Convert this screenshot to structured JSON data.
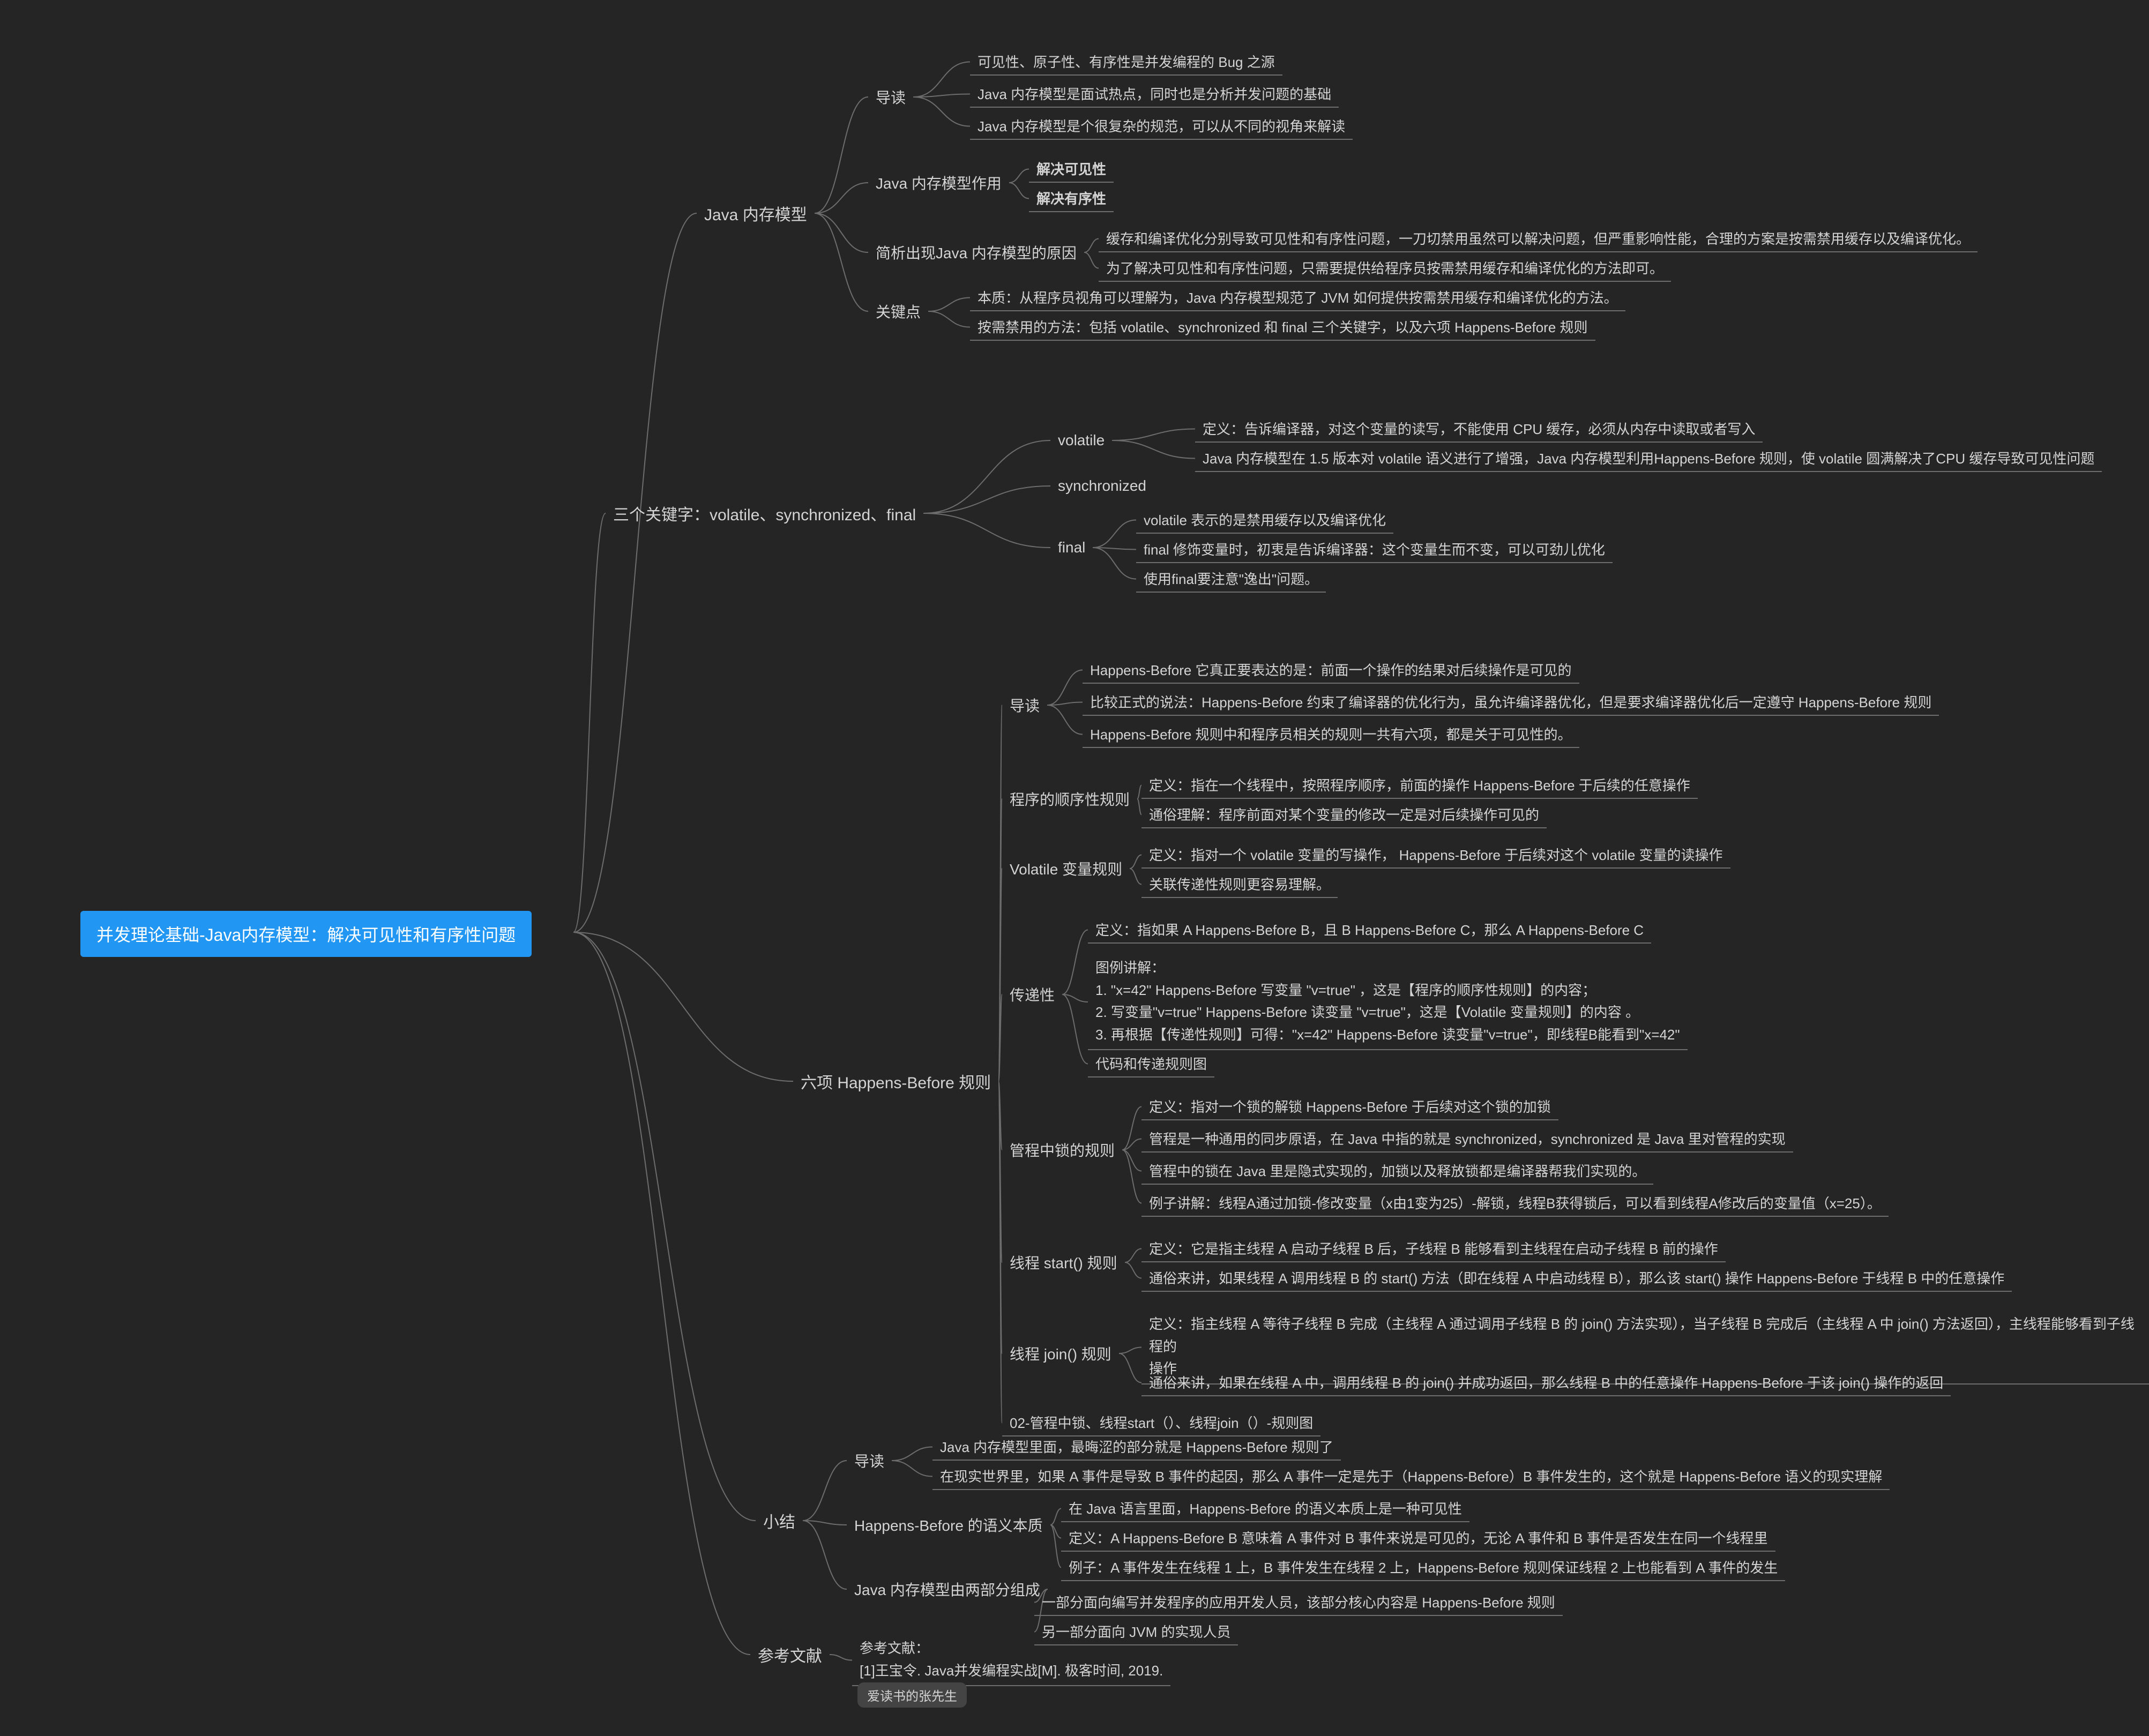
{
  "colors": {
    "bg": "#252526",
    "text": "#d4d4d4",
    "rootBg": "#2196f3",
    "rootText": "#ffffff",
    "connector": "#6d6d6d",
    "badgeBg": "#444444"
  },
  "typography": {
    "rootFont": 32,
    "branchFont": 30,
    "subFont": 28,
    "leafFont": 26
  },
  "root": {
    "label": "并发理论基础-Java内存模型：解决可见性和有序性问题"
  },
  "branches": [
    {
      "id": "b1",
      "label": "Java 内存模型"
    },
    {
      "id": "b2",
      "label": "三个关键字：volatile、synchronized、final"
    },
    {
      "id": "b3",
      "label": "六项 Happens-Before 规则"
    },
    {
      "id": "b4",
      "label": "小结"
    },
    {
      "id": "b5",
      "label": "参考文献"
    }
  ],
  "b1": {
    "sub": [
      {
        "id": "b1s1",
        "label": "导读"
      },
      {
        "id": "b1s2",
        "label": "Java 内存模型作用"
      },
      {
        "id": "b1s3",
        "label": "简析出现Java 内存模型的原因"
      },
      {
        "id": "b1s4",
        "label": "关键点"
      }
    ],
    "b1s1": [
      "可见性、原子性、有序性是并发编程的 Bug 之源",
      "Java 内存模型是面试热点，同时也是分析并发问题的基础",
      "Java 内存模型是个很复杂的规范，可以从不同的视角来解读"
    ],
    "b1s2": [
      "解决可见性",
      "解决有序性"
    ],
    "b1s3": [
      "缓存和编译优化分别导致可见性和有序性问题，一刀切禁用虽然可以解决问题，但严重影响性能，合理的方案是按需禁用缓存以及编译优化。",
      "为了解决可见性和有序性问题，只需要提供给程序员按需禁用缓存和编译优化的方法即可。"
    ],
    "b1s4": [
      "本质：从程序员视角可以理解为，Java 内存模型规范了 JVM 如何提供按需禁用缓存和编译优化的方法。",
      "按需禁用的方法：包括 volatile、synchronized 和 final 三个关键字，以及六项 Happens-Before 规则"
    ]
  },
  "b2": {
    "sub": [
      {
        "id": "b2s1",
        "label": "volatile"
      },
      {
        "id": "b2s2",
        "label": "synchronized"
      },
      {
        "id": "b2s3",
        "label": "final"
      }
    ],
    "b2s1": [
      "定义：告诉编译器，对这个变量的读写，不能使用 CPU 缓存，必须从内存中读取或者写入",
      "Java 内存模型在 1.5 版本对 volatile 语义进行了增强，Java 内存模型利用Happens-Before 规则，使 volatile 圆满解决了CPU 缓存导致可见性问题"
    ],
    "b2s3": [
      "volatile 表示的是禁用缓存以及编译优化",
      "final 修饰变量时，初衷是告诉编译器：这个变量生而不变，可以可劲儿优化",
      "使用final要注意\"逸出\"问题。"
    ]
  },
  "b3": {
    "sub": [
      {
        "id": "b3s1",
        "label": "导读"
      },
      {
        "id": "b3s2",
        "label": "程序的顺序性规则"
      },
      {
        "id": "b3s3",
        "label": "Volatile 变量规则"
      },
      {
        "id": "b3s4",
        "label": "传递性"
      },
      {
        "id": "b3s5",
        "label": "管程中锁的规则"
      },
      {
        "id": "b3s6",
        "label": "线程 start() 规则"
      },
      {
        "id": "b3s7",
        "label": "线程 join() 规则"
      },
      {
        "id": "b3s8",
        "label": "02-管程中锁、线程start（）、线程join（）-规则图"
      }
    ],
    "b3s1": [
      "Happens-Before 它真正要表达的是：前面一个操作的结果对后续操作是可见的",
      "比较正式的说法：Happens-Before 约束了编译器的优化行为，虽允许编译器优化，但是要求编译器优化后一定遵守 Happens-Before 规则",
      "Happens-Before 规则中和程序员相关的规则一共有六项，都是关于可见性的。"
    ],
    "b3s2": [
      "定义：指在一个线程中，按照程序顺序，前面的操作 Happens-Before 于后续的任意操作",
      "通俗理解：程序前面对某个变量的修改一定是对后续操作可见的"
    ],
    "b3s3": [
      "定义：指对一个 volatile 变量的写操作， Happens-Before 于后续对这个 volatile 变量的读操作",
      "关联传递性规则更容易理解。"
    ],
    "b3s4": [
      "定义：指如果 A Happens-Before B，且 B Happens-Before C，那么 A Happens-Before C",
      "图例讲解：\n1. \"x=42\" Happens-Before 写变量 \"v=true\" ，这是【程序的顺序性规则】的内容；\n2. 写变量\"v=true\" Happens-Before 读变量 \"v=true\"，这是【Volatile 变量规则】的内容 。\n3. 再根据【传递性规则】可得：\"x=42\" Happens-Before 读变量\"v=true\"，即线程B能看到\"x=42\"",
      "代码和传递规则图"
    ],
    "b3s5": [
      "定义：指对一个锁的解锁 Happens-Before 于后续对这个锁的加锁",
      "管程是一种通用的同步原语，在 Java 中指的就是 synchronized，synchronized 是 Java 里对管程的实现",
      "管程中的锁在 Java 里是隐式实现的，加锁以及释放锁都是编译器帮我们实现的。",
      "例子讲解：线程A通过加锁-修改变量（x由1变为25）-解锁，线程B获得锁后，可以看到线程A修改后的变量值（x=25）。"
    ],
    "b3s6": [
      "定义：它是指主线程 A 启动子线程 B 后，子线程 B 能够看到主线程在启动子线程 B 前的操作",
      "通俗来讲，如果线程 A 调用线程 B 的 start() 方法（即在线程 A 中启动线程 B），那么该 start() 操作 Happens-Before 于线程 B 中的任意操作"
    ],
    "b3s7": [
      "定义：指主线程 A 等待子线程 B 完成（主线程 A 通过调用子线程 B 的 join() 方法实现），当子线程 B 完成后（主线程 A 中 join() 方法返回），主线程能够看到子线程的\n操作",
      "通俗来讲，如果在线程 A 中，调用线程 B 的 join() 并成功返回，那么线程 B 中的任意操作 Happens-Before 于该 join() 操作的返回"
    ]
  },
  "b4": {
    "sub": [
      {
        "id": "b4s1",
        "label": "导读"
      },
      {
        "id": "b4s2",
        "label": "Happens-Before 的语义本质"
      },
      {
        "id": "b4s3",
        "label": "Java 内存模型由两部分组成"
      }
    ],
    "b4s1": [
      "Java 内存模型里面，最晦涩的部分就是 Happens-Before 规则了",
      "在现实世界里，如果 A 事件是导致 B 事件的起因，那么 A 事件一定是先于（Happens-Before）B 事件发生的，这个就是 Happens-Before 语义的现实理解"
    ],
    "b4s2": [
      "在 Java 语言里面，Happens-Before 的语义本质上是一种可见性",
      "定义：A Happens-Before B 意味着 A 事件对 B 事件来说是可见的，无论 A 事件和 B 事件是否发生在同一个线程里",
      "例子：A 事件发生在线程 1 上，B 事件发生在线程 2 上，Happens-Before 规则保证线程 2 上也能看到 A 事件的发生"
    ],
    "b4s3": [
      "一部分面向编写并发程序的应用开发人员，该部分核心内容是 Happens-Before 规则",
      "另一部分面向 JVM 的实现人员"
    ]
  },
  "b5": {
    "ref": "参考文献：\n[1]王宝令. Java并发编程实战[M]. 极客时间, 2019.",
    "badge": "爱读书的张先生"
  }
}
